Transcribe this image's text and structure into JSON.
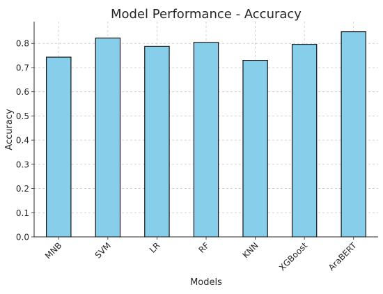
{
  "chart_data": {
    "type": "bar",
    "title": "Model Performance - Accuracy",
    "xlabel": "Models",
    "ylabel": "Accuracy",
    "categories": [
      "MNB",
      "SVM",
      "LR",
      "RF",
      "KNN",
      "XGBoost",
      "AraBERT"
    ],
    "values": [
      0.743,
      0.822,
      0.788,
      0.804,
      0.73,
      0.796,
      0.848
    ],
    "ylim": [
      0,
      0.89
    ],
    "yticks": [
      0.0,
      0.1,
      0.2,
      0.3,
      0.4,
      0.5,
      0.6,
      0.7,
      0.8
    ],
    "ytick_labels": [
      "0.0",
      "0.1",
      "0.2",
      "0.3",
      "0.4",
      "0.5",
      "0.6",
      "0.7",
      "0.8"
    ],
    "grid": true,
    "bar_color": "#87CEEB",
    "bar_edge_color": "#000000",
    "legend": null
  }
}
